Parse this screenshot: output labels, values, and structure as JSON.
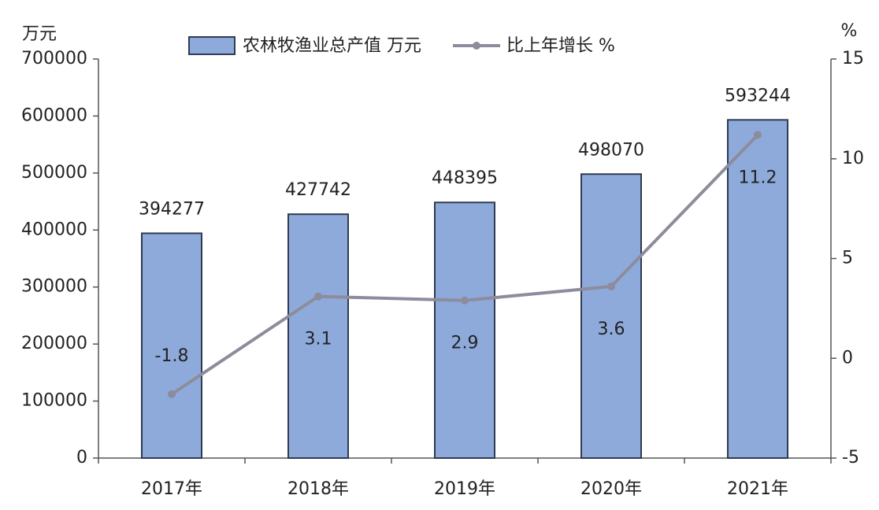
{
  "chart_data": {
    "type": "bar",
    "categories": [
      "2017年",
      "2018年",
      "2019年",
      "2020年",
      "2021年"
    ],
    "series": [
      {
        "name": "农林牧渔业总产值 万元",
        "type": "bar",
        "color": "#8eaadb",
        "values": [
          394277,
          427742,
          448395,
          498070,
          593244
        ]
      },
      {
        "name": "比上年增长 %",
        "type": "line",
        "axis": "y2",
        "color": "#8c8c9c",
        "values": [
          -1.8,
          3.1,
          2.9,
          3.6,
          11.2
        ]
      }
    ],
    "y_axis_label": "万元",
    "y2_axis_label": "%",
    "ylim": [
      0,
      700000
    ],
    "yticks": [
      0,
      100000,
      200000,
      300000,
      400000,
      500000,
      600000,
      700000
    ],
    "y2lim": [
      -5,
      15
    ],
    "y2ticks": [
      -5,
      0,
      5,
      10,
      15
    ],
    "grid": false
  }
}
